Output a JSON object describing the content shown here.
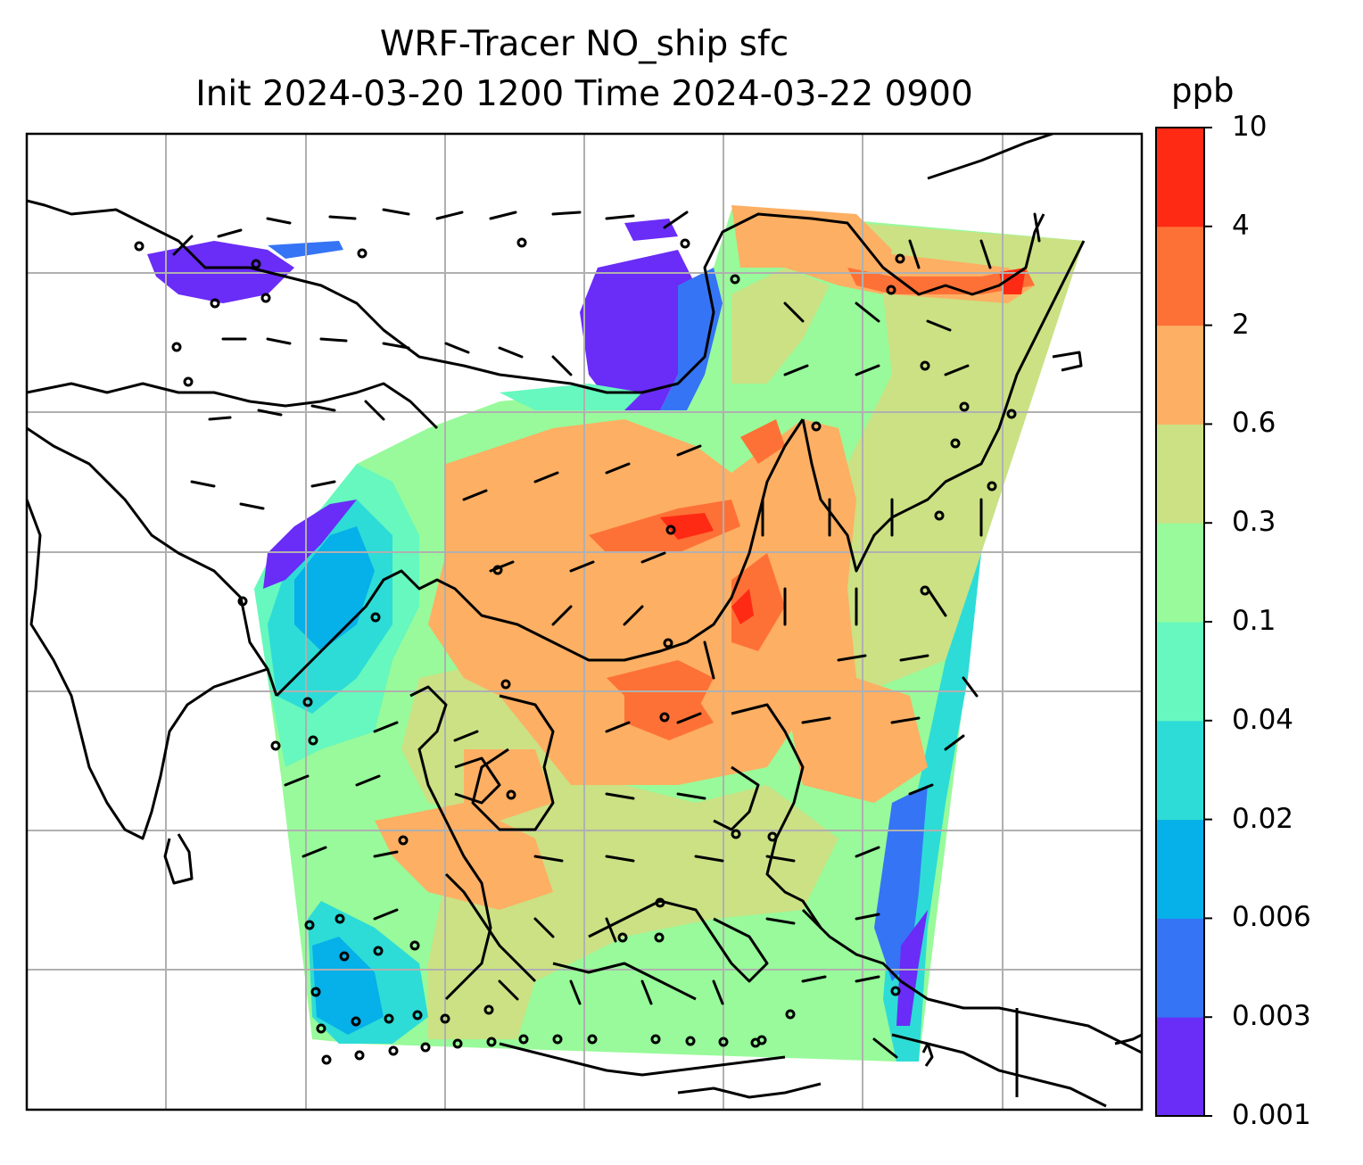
{
  "title_line1": "WRF-Tracer NO_ship sfc",
  "title_line2": "Init 2024-03-20 1200 Time 2024-03-22 0900",
  "colorbar": {
    "unit": "ppb",
    "tick_labels": [
      "0.001",
      "0.003",
      "0.006",
      "0.02",
      "0.04",
      "0.1",
      "0.3",
      "0.6",
      "2",
      "4",
      "10"
    ],
    "colors": [
      "#6a2cf7",
      "#3574f5",
      "#06b0e9",
      "#2ddcd6",
      "#66f8be",
      "#98fa9a",
      "#cbe184",
      "#fdaf63",
      "#fe7136",
      "#ff2a14"
    ]
  },
  "map": {
    "variable": "NO_ship surface concentration",
    "overlays": [
      "coastlines",
      "gridlines",
      "wind-barbs",
      "calm-circles"
    ]
  }
}
